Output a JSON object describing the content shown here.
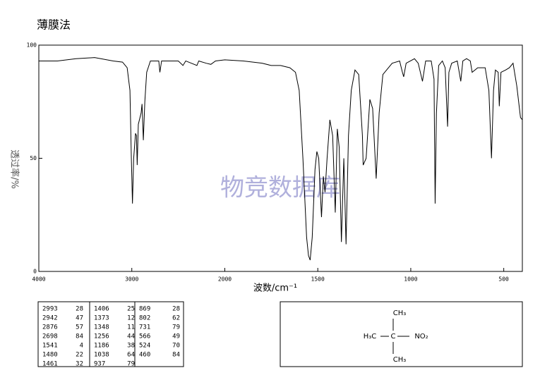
{
  "chart_data": {
    "type": "line",
    "title": "薄膜法",
    "xlabel": "波数/cm⁻¹",
    "ylabel": "透过率/%",
    "watermark": "物竞数据库",
    "color": "#000000",
    "xlim": [
      4000,
      400
    ],
    "ylim": [
      0,
      100
    ],
    "xticks": [
      4000,
      3000,
      2000,
      1500,
      1000,
      500
    ],
    "yticks": [
      0,
      50,
      100
    ],
    "x": [
      4000,
      3800,
      3600,
      3400,
      3200,
      3100,
      3050,
      3020,
      3005,
      2993,
      2980,
      2960,
      2950,
      2942,
      2930,
      2900,
      2890,
      2876,
      2860,
      2840,
      2800,
      2710,
      2698,
      2680,
      2500,
      2450,
      2420,
      2300,
      2280,
      2200,
      2150,
      2100,
      2000,
      1900,
      1800,
      1750,
      1700,
      1650,
      1620,
      1600,
      1580,
      1560,
      1550,
      1541,
      1530,
      1515,
      1505,
      1495,
      1480,
      1470,
      1461,
      1450,
      1435,
      1420,
      1406,
      1395,
      1385,
      1373,
      1360,
      1348,
      1335,
      1320,
      1300,
      1280,
      1260,
      1256,
      1240,
      1220,
      1205,
      1186,
      1170,
      1150,
      1100,
      1060,
      1045,
      1038,
      1025,
      980,
      960,
      937,
      920,
      890,
      875,
      869,
      862,
      850,
      830,
      815,
      802,
      795,
      780,
      750,
      731,
      720,
      700,
      680,
      670,
      640,
      600,
      580,
      566,
      555,
      545,
      530,
      524,
      515,
      490,
      470,
      450,
      430,
      410,
      400
    ],
    "values": [
      93,
      93,
      94,
      94.5,
      93,
      92.5,
      90,
      80,
      50,
      30,
      50,
      61,
      60,
      47,
      65,
      70,
      74,
      58,
      75,
      88,
      93,
      93,
      88,
      93,
      93,
      91,
      93,
      91,
      93,
      92,
      91.5,
      93,
      93.5,
      93,
      92,
      91,
      91,
      90,
      88,
      80,
      50,
      15,
      7,
      5,
      15,
      45,
      53,
      50,
      24,
      42,
      35,
      50,
      67,
      60,
      26,
      63,
      55,
      13,
      50,
      12,
      60,
      80,
      89,
      87,
      60,
      47,
      50,
      76,
      72,
      41,
      70,
      87,
      92,
      93,
      88,
      86,
      92,
      94,
      92,
      84,
      93,
      93,
      85,
      30,
      70,
      91,
      93,
      90,
      64,
      88,
      92,
      93,
      84,
      93,
      94,
      93,
      88,
      90,
      90,
      80,
      50,
      80,
      89,
      88,
      73,
      88,
      89,
      90,
      92,
      82,
      68,
      67
    ],
    "peak_table": [
      [
        [
          2993,
          28
        ],
        [
          2942,
          47
        ],
        [
          2876,
          57
        ],
        [
          2698,
          84
        ],
        [
          1541,
          4
        ],
        [
          1480,
          22
        ],
        [
          1461,
          32
        ]
      ],
      [
        [
          1406,
          25
        ],
        [
          1373,
          12
        ],
        [
          1348,
          11
        ],
        [
          1256,
          44
        ],
        [
          1186,
          38
        ],
        [
          1038,
          64
        ],
        [
          937,
          79
        ]
      ],
      [
        [
          869,
          28
        ],
        [
          802,
          62
        ],
        [
          731,
          79
        ],
        [
          566,
          49
        ],
        [
          524,
          70
        ],
        [
          460,
          84
        ]
      ]
    ],
    "structure": {
      "top": "CH₃",
      "left": "H₃C",
      "center": "C",
      "right": "NO₂",
      "bottom": "CH₃"
    }
  }
}
